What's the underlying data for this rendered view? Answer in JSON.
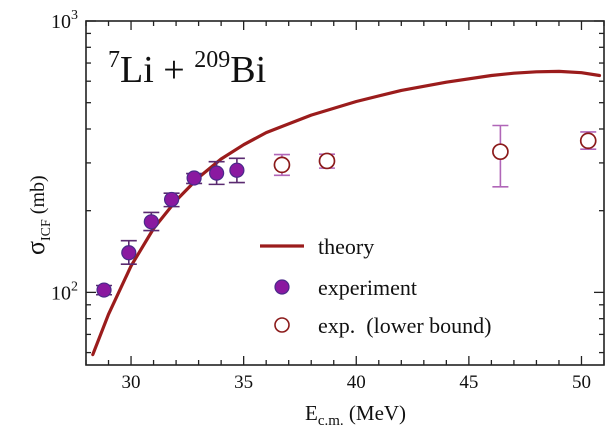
{
  "chart_data": {
    "type": "scatter",
    "annotation": {
      "mass_target": "7",
      "projectile_symbol": "Li",
      "plus": " + ",
      "mass_target2": "209",
      "target_symbol": "Bi"
    },
    "xlabel": {
      "main": "E",
      "sub": "c.m.",
      "unit": " (MeV)"
    },
    "ylabel": {
      "main": "σ",
      "sub": "ICF",
      "unit": " (mb)"
    },
    "xlim": [
      28.0,
      51.0
    ],
    "ylim": [
      54,
      1000
    ],
    "yscale": "log",
    "x_ticks": [
      "30",
      "35",
      "40",
      "45",
      "50"
    ],
    "x_tick_values": [
      30,
      35,
      40,
      45,
      50
    ],
    "y_ticks": [
      {
        "value": 100,
        "base": "10",
        "exp": "2"
      },
      {
        "value": 1000,
        "base": "10",
        "exp": "3"
      }
    ],
    "grid": false,
    "legend_position": "bottom-right",
    "legend": [
      "theory",
      "experiment",
      "exp.  (lower bound)"
    ],
    "colors": {
      "theory": "#9b1c1c",
      "experiment_fill": "#8a19a0",
      "experiment_edge": "#4a2a8a",
      "errorbar": "#5a2a70",
      "open_marker": "#8b1a1a",
      "open_errorbar": "#b066b8"
    },
    "series": [
      {
        "name": "theory",
        "kind": "line",
        "x": [
          28.3,
          29.0,
          30.0,
          31.0,
          32.0,
          33.0,
          34.0,
          35.0,
          36.0,
          38.0,
          40.0,
          42.0,
          44.0,
          46.0,
          47.0,
          48.0,
          49.0,
          50.0,
          50.8
        ],
        "y": [
          59,
          83,
          125,
          172,
          218,
          265,
          310,
          350,
          388,
          450,
          505,
          555,
          595,
          630,
          642,
          650,
          652,
          645,
          630
        ]
      },
      {
        "name": "experiment",
        "kind": "scatter-filled",
        "x": [
          28.8,
          29.9,
          30.9,
          31.8,
          32.8,
          33.8,
          34.7
        ],
        "y": [
          102,
          140,
          182,
          220,
          264,
          275,
          282
        ],
        "yerr_low": [
          4,
          13,
          13,
          13,
          12,
          25,
          28
        ],
        "yerr_high": [
          4,
          15,
          15,
          12,
          10,
          28,
          30
        ]
      },
      {
        "name": "exp.  (lower bound)",
        "kind": "scatter-open",
        "x": [
          36.7,
          38.7,
          46.4,
          50.3
        ],
        "y": [
          295,
          305,
          330,
          362
        ],
        "yerr_low": [
          25,
          18,
          85,
          25
        ],
        "yerr_high": [
          27,
          18,
          82,
          28
        ]
      }
    ]
  }
}
